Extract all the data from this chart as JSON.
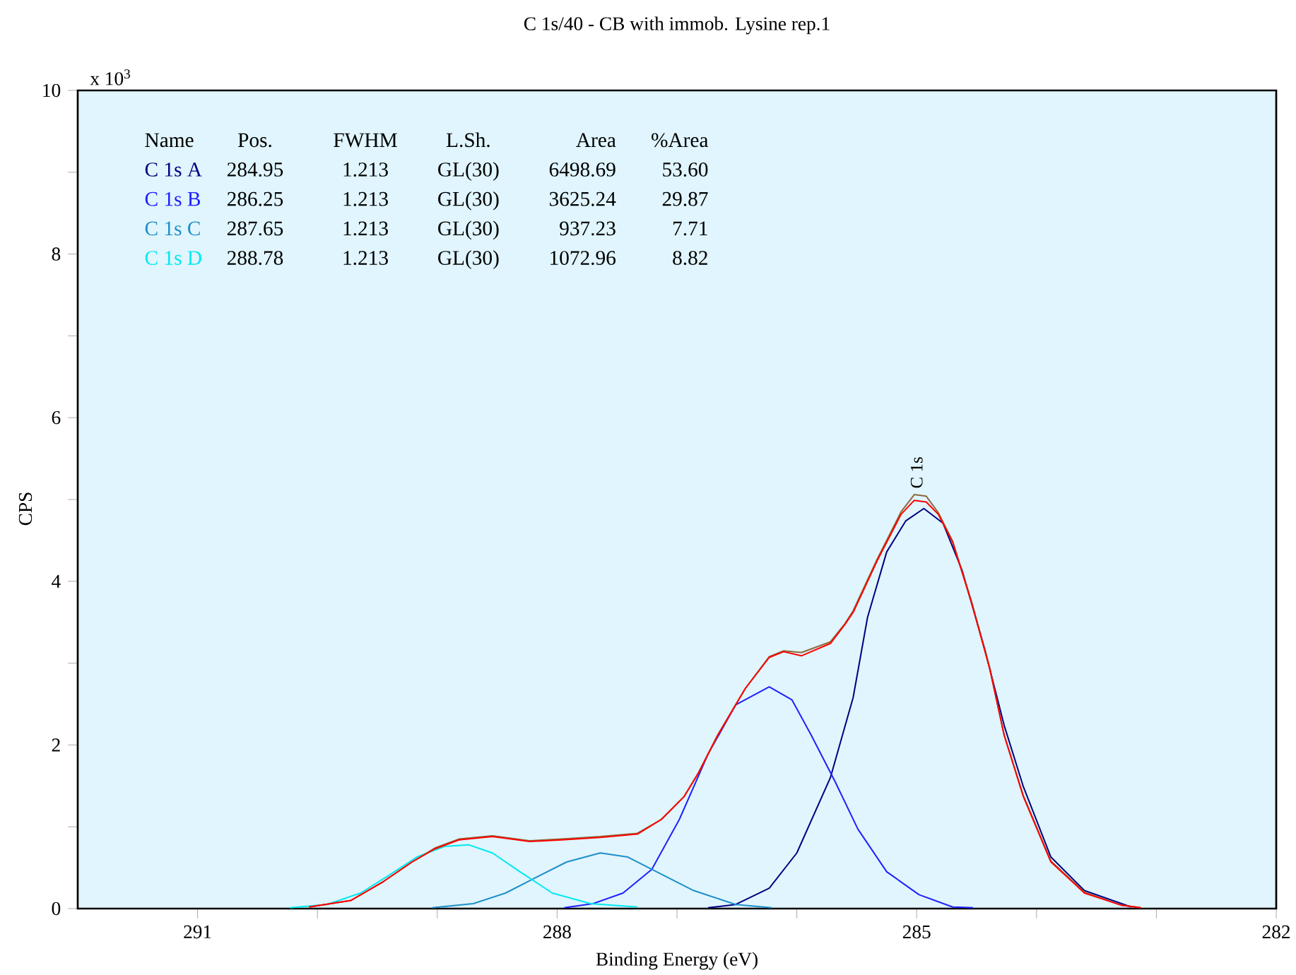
{
  "chart_data": {
    "type": "line",
    "title": "C 1s/40 - CB with immob. Lysine rep.1",
    "xlabel": "Binding Energy (eV)",
    "ylabel": "CPS",
    "xlim": [
      292,
      282
    ],
    "ylim": [
      0,
      10
    ],
    "xticks": [
      291,
      {
        "value": 290,
        "label": null
      },
      {
        "value": 289,
        "label": null
      },
      288,
      {
        "value": 287,
        "label": null
      },
      {
        "value": 286,
        "label": null
      },
      285,
      {
        "value": 284,
        "label": null
      },
      {
        "value": 283,
        "label": null
      },
      282
    ],
    "yticks": [
      0,
      {
        "value": 1,
        "label": null
      },
      2,
      {
        "value": 3,
        "label": null
      },
      4,
      {
        "value": 5,
        "label": null
      },
      6,
      {
        "value": 7,
        "label": null
      },
      8,
      {
        "value": 9,
        "label": null
      },
      10
    ],
    "legend": "top left",
    "series": [
      {
        "name": "C 1s A",
        "color": "#000080",
        "x": [
          286.74,
          286.51,
          286.23,
          286.0,
          285.72,
          285.53,
          285.41,
          285.25,
          285.09,
          284.94,
          284.78,
          284.62,
          284.43,
          284.27,
          284.11,
          283.88,
          283.6,
          283.21
        ],
        "values": [
          0.01,
          0.05,
          0.25,
          0.68,
          1.6,
          2.58,
          3.56,
          4.36,
          4.74,
          4.89,
          4.71,
          4.13,
          3.16,
          2.24,
          1.49,
          0.63,
          0.22,
          0.02
        ]
      },
      {
        "name": "C 1s B",
        "color": "#2020ff",
        "x": [
          287.94,
          287.7,
          287.45,
          287.21,
          286.98,
          286.74,
          286.51,
          286.23,
          286.04,
          285.88,
          285.68,
          285.49,
          285.25,
          284.98,
          284.7,
          284.53
        ],
        "values": [
          0.01,
          0.06,
          0.19,
          0.48,
          1.09,
          1.89,
          2.49,
          2.71,
          2.55,
          2.12,
          1.55,
          0.97,
          0.45,
          0.17,
          0.02,
          0.01
        ]
      },
      {
        "name": "C 1s C",
        "color": "#1e8fc8",
        "x": [
          289.04,
          288.7,
          288.43,
          288.19,
          287.92,
          287.64,
          287.41,
          287.17,
          286.86,
          286.51,
          286.21
        ],
        "values": [
          0.01,
          0.06,
          0.19,
          0.37,
          0.57,
          0.68,
          0.63,
          0.45,
          0.22,
          0.05,
          0.01
        ]
      },
      {
        "name": "C 1s D",
        "color": "#00e8f0",
        "x": [
          290.23,
          289.92,
          289.64,
          289.41,
          289.17,
          288.94,
          288.74,
          288.54,
          288.31,
          288.04,
          287.72,
          287.33
        ],
        "values": [
          0.01,
          0.05,
          0.19,
          0.4,
          0.63,
          0.76,
          0.78,
          0.68,
          0.45,
          0.19,
          0.06,
          0.02
        ]
      },
      {
        "color": "#8b6a3a",
        "x": [
          290.07,
          289.72,
          289.45,
          289.21,
          289.02,
          288.82,
          288.54,
          288.23,
          287.96,
          287.64,
          287.33,
          287.13,
          286.94,
          286.82,
          286.66,
          286.43,
          286.23,
          286.11,
          285.96,
          285.72,
          285.6,
          285.53,
          285.33,
          285.13,
          285.02,
          284.92,
          284.82,
          284.7,
          284.54,
          284.39,
          284.27,
          284.11,
          283.88,
          283.6,
          283.29,
          283.13
        ],
        "values": [
          0.02,
          0.1,
          0.33,
          0.57,
          0.74,
          0.85,
          0.89,
          0.83,
          0.85,
          0.88,
          0.92,
          1.09,
          1.37,
          1.66,
          2.12,
          2.69,
          3.08,
          3.15,
          3.13,
          3.26,
          3.48,
          3.64,
          4.27,
          4.85,
          5.06,
          5.04,
          4.84,
          4.49,
          3.74,
          2.94,
          2.12,
          1.38,
          0.58,
          0.2,
          0.04,
          0.01
        ]
      },
      {
        "color": "#ff0000",
        "x": [
          290.07,
          289.72,
          289.45,
          289.21,
          289.02,
          288.82,
          288.54,
          288.23,
          287.96,
          287.64,
          287.33,
          287.13,
          286.94,
          286.82,
          286.66,
          286.43,
          286.23,
          286.11,
          285.96,
          285.72,
          285.6,
          285.53,
          285.33,
          285.13,
          285.02,
          284.92,
          284.82,
          284.7,
          284.54,
          284.39,
          284.27,
          284.11,
          283.88,
          283.6,
          283.29,
          283.13
        ],
        "values": [
          0.02,
          0.1,
          0.33,
          0.57,
          0.73,
          0.84,
          0.88,
          0.82,
          0.84,
          0.87,
          0.91,
          1.09,
          1.37,
          1.66,
          2.12,
          2.69,
          3.07,
          3.14,
          3.09,
          3.24,
          3.47,
          3.62,
          4.25,
          4.82,
          4.99,
          4.97,
          4.82,
          4.48,
          3.73,
          2.93,
          2.12,
          1.37,
          0.57,
          0.19,
          0.04,
          0.01
        ]
      }
    ],
    "annotations": [
      "Name",
      "Pos.",
      "FWHM",
      "L.Sh.",
      "Area",
      "%Area",
      "284.95",
      "1.213",
      "GL(30)",
      "6498.69",
      "53.60",
      "286.25",
      "1.213",
      "GL(30)",
      "3625.24",
      "29.87",
      "287.65",
      "1.213",
      "GL(30)",
      "937.23",
      "7.71",
      "288.78",
      "1.213",
      "GL(30)",
      "1072.96",
      "8.82",
      "x 10$^{3}$",
      {
        "text": "C 1s",
        "x": 285,
        "y": 5.1
      }
    ]
  }
}
